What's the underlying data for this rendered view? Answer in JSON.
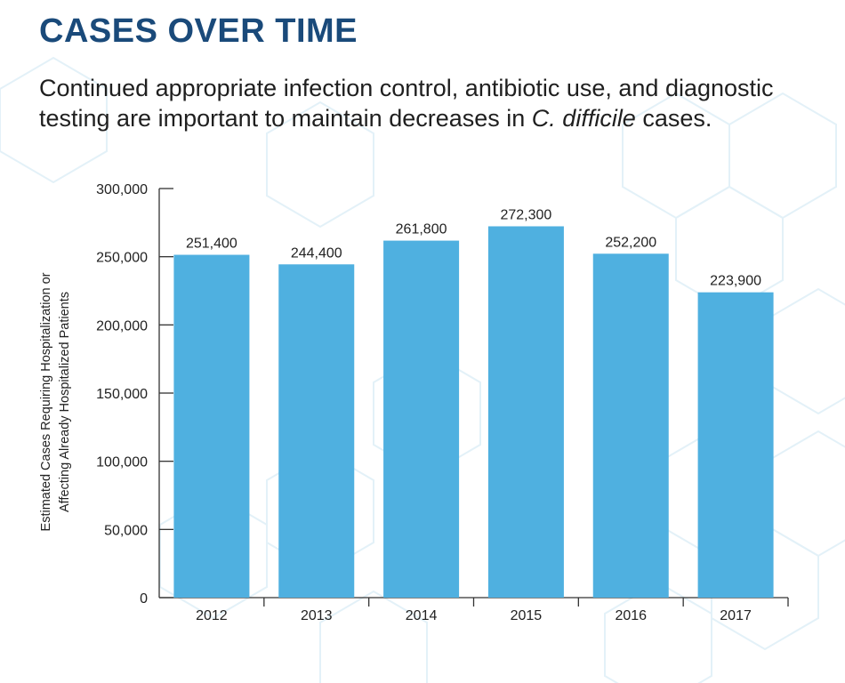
{
  "header": {
    "title": "CASES OVER TIME",
    "subtitle_part1": "Continued appropriate infection control, antibiotic use, and diagnostic testing are important to maintain decreases in ",
    "subtitle_italic": "C. difficile",
    "subtitle_part2": " cases."
  },
  "colors": {
    "bar": "#4fb0e0",
    "title": "#1a4a7a",
    "axis": "#333333",
    "background_hex": "#e3f1f8"
  },
  "chart_data": {
    "type": "bar",
    "title": "",
    "xlabel": "",
    "ylabel_line1": "Estimated Cases Requiring Hospitalization or",
    "ylabel_line2": "Affecting Already Hospitalized Patients",
    "categories": [
      "2012",
      "2013",
      "2014",
      "2015",
      "2016",
      "2017"
    ],
    "values": [
      251400,
      244400,
      261800,
      272300,
      252200,
      223900
    ],
    "data_labels": [
      "251,400",
      "244,400",
      "261,800",
      "272,300",
      "252,200",
      "223,900"
    ],
    "ylim": [
      0,
      300000
    ],
    "yticks": [
      0,
      50000,
      100000,
      150000,
      200000,
      250000,
      300000
    ],
    "ytick_labels": [
      "0",
      "50,000",
      "100,000",
      "150,000",
      "200,000",
      "250,000",
      "300,000"
    ],
    "grid": false,
    "legend": "none"
  }
}
